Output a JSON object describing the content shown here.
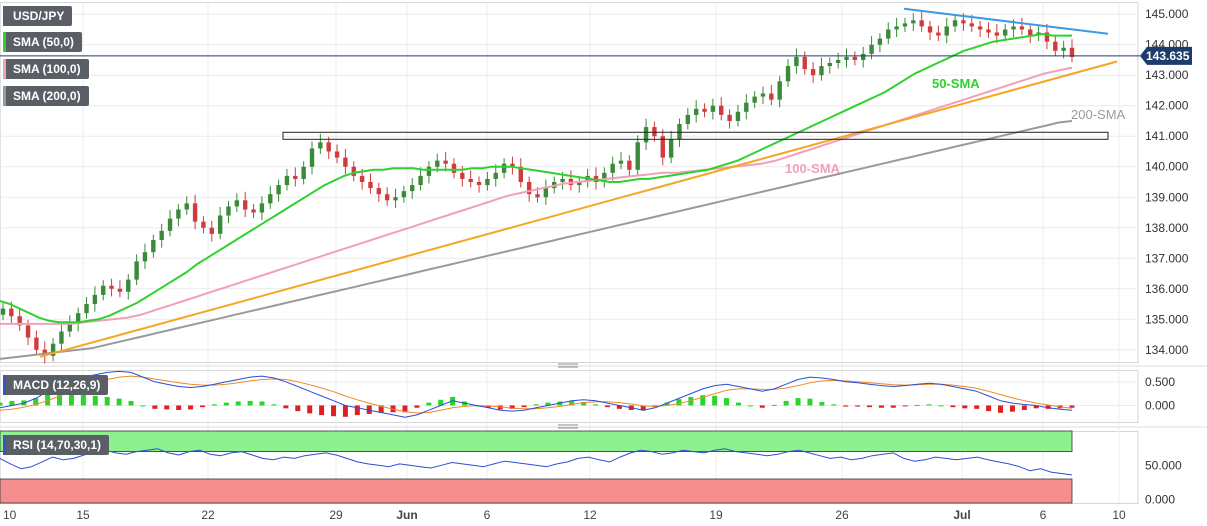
{
  "chart_data": {
    "type": "candlestick",
    "symbol": "USD/JPY",
    "indicators": [
      "SMA (50,0)",
      "SMA (100,0)",
      "SMA (200,0)"
    ],
    "price_axis": {
      "ylim": [
        133.6,
        145.4
      ],
      "ticks": [
        "134.000",
        "135.000",
        "136.000",
        "137.000",
        "138.000",
        "139.000",
        "140.000",
        "141.000",
        "142.000",
        "143.000",
        "144.000",
        "145.000"
      ]
    },
    "last_price": "143.635",
    "x_axis": {
      "labels": [
        "10",
        "15",
        "22",
        "29",
        "Jun",
        "6",
        "12",
        "19",
        "26",
        "Jul",
        "6",
        "10"
      ]
    },
    "annotations": {
      "sma50": "50-SMA",
      "sma100": "100-SMA",
      "sma200": "200-SMA"
    },
    "colors": {
      "up": "#3a8a3a",
      "down": "#d13b3b",
      "sma50": "#2fd12f",
      "sma100": "#f0a0b8",
      "sma200": "#9a9a9a",
      "trend": "#f5a623",
      "resist": "#3b9ae0"
    },
    "macd": {
      "label": "MACD (12,26,9)",
      "ticks": [
        "0.500",
        "0.000"
      ],
      "range": [
        -0.35,
        0.75
      ]
    },
    "rsi": {
      "label": "RSI (14,70,30,1)",
      "ticks": [
        "50.000",
        "0.000"
      ],
      "overbought": 70,
      "oversold": 30,
      "range": [
        -5,
        100
      ]
    },
    "series": {
      "close": [
        135.35,
        135.1,
        134.8,
        134.4,
        134.0,
        133.8,
        134.2,
        134.6,
        134.85,
        135.2,
        135.5,
        135.8,
        136.1,
        136.0,
        135.9,
        136.3,
        136.9,
        137.2,
        137.6,
        137.9,
        138.3,
        138.6,
        138.8,
        138.2,
        138.0,
        137.8,
        138.4,
        138.7,
        138.9,
        138.6,
        138.5,
        138.8,
        139.1,
        139.4,
        139.7,
        139.6,
        140.0,
        140.6,
        140.8,
        140.5,
        140.3,
        140.0,
        139.7,
        139.5,
        139.3,
        139.1,
        138.9,
        139.0,
        139.2,
        139.4,
        139.7,
        140.0,
        140.2,
        140.1,
        139.8,
        139.6,
        139.5,
        139.4,
        139.6,
        139.8,
        140.1,
        140.0,
        139.5,
        139.1,
        139.0,
        139.3,
        139.5,
        139.6,
        139.4,
        139.5,
        139.7,
        139.5,
        139.8,
        140.1,
        140.2,
        139.9,
        140.8,
        141.3,
        141.0,
        140.3,
        140.9,
        141.4,
        141.7,
        141.9,
        141.8,
        142.0,
        141.7,
        141.5,
        141.8,
        142.1,
        142.3,
        142.4,
        142.2,
        142.8,
        143.3,
        143.6,
        143.2,
        143.0,
        143.3,
        143.4,
        143.5,
        143.6,
        143.5,
        143.7,
        144.0,
        144.2,
        144.5,
        144.6,
        144.7,
        144.8,
        144.6,
        144.4,
        144.3,
        144.6,
        144.8,
        144.7,
        144.6,
        144.5,
        144.4,
        144.3,
        144.5,
        144.6,
        144.5,
        144.3,
        144.4,
        144.1,
        143.8,
        143.9,
        143.6
      ],
      "sma50": [
        135.6,
        135.5,
        135.35,
        135.2,
        135.05,
        134.95,
        134.9,
        134.9,
        134.9,
        134.95,
        135.0,
        135.1,
        135.25,
        135.4,
        135.55,
        135.75,
        135.95,
        136.15,
        136.35,
        136.55,
        136.8,
        137.0,
        137.2,
        137.4,
        137.6,
        137.8,
        138.0,
        138.2,
        138.4,
        138.6,
        138.8,
        139.0,
        139.2,
        139.4,
        139.55,
        139.7,
        139.8,
        139.85,
        139.9,
        139.9,
        139.95,
        139.95,
        139.95,
        139.9,
        139.9,
        139.9,
        139.9,
        139.9,
        139.95,
        139.95,
        140.0,
        140.0,
        140.0,
        139.95,
        139.9,
        139.85,
        139.8,
        139.75,
        139.7,
        139.65,
        139.6,
        139.55,
        139.5,
        139.5,
        139.55,
        139.6,
        139.6,
        139.65,
        139.7,
        139.75,
        139.8,
        139.85,
        139.9,
        140.0,
        140.1,
        140.2,
        140.35,
        140.5,
        140.65,
        140.8,
        140.95,
        141.1,
        141.25,
        141.4,
        141.55,
        141.7,
        141.85,
        142.0,
        142.15,
        142.3,
        142.45,
        142.65,
        142.85,
        143.05,
        143.2,
        143.35,
        143.5,
        143.65,
        143.8,
        143.9,
        144.0,
        144.1,
        144.15,
        144.2,
        144.25,
        144.3,
        144.35,
        144.3,
        144.3,
        144.3
      ],
      "sma100": [
        134.85,
        134.85,
        134.85,
        134.85,
        134.85,
        134.85,
        134.9,
        134.95,
        135.0,
        135.05,
        135.15,
        135.3,
        135.45,
        135.6,
        135.75,
        135.9,
        136.05,
        136.2,
        136.35,
        136.5,
        136.65,
        136.8,
        136.95,
        137.1,
        137.25,
        137.4,
        137.55,
        137.7,
        137.85,
        138.0,
        138.15,
        138.3,
        138.45,
        138.6,
        138.75,
        138.9,
        139.05,
        139.15,
        139.25,
        139.35,
        139.45,
        139.5,
        139.55,
        139.6,
        139.65,
        139.7,
        139.75,
        139.8,
        139.8,
        139.85,
        139.9,
        139.95,
        140.0,
        140.05,
        140.1,
        140.2,
        140.35,
        140.5,
        140.65,
        140.8,
        140.95,
        141.1,
        141.25,
        141.4,
        141.55,
        141.7,
        141.85,
        142.0,
        142.15,
        142.3,
        142.45,
        142.6,
        142.75,
        142.9,
        143.05,
        143.15,
        143.25
      ],
      "sma200": [
        133.7,
        133.75,
        133.8,
        133.85,
        133.9,
        133.95,
        134.0,
        134.05,
        134.15,
        134.25,
        134.35,
        134.45,
        134.55,
        134.65,
        134.75,
        134.85,
        134.95,
        135.05,
        135.15,
        135.25,
        135.35,
        135.45,
        135.55,
        135.65,
        135.75,
        135.85,
        135.95,
        136.05,
        136.15,
        136.25,
        136.35,
        136.45,
        136.55,
        136.65,
        136.75,
        136.85,
        136.95,
        137.05,
        137.15,
        137.25,
        137.35,
        137.45,
        137.55,
        137.65,
        137.75,
        137.85,
        137.95,
        138.05,
        138.15,
        138.25,
        138.35,
        138.45,
        138.55,
        138.65,
        138.75,
        138.85,
        138.95,
        139.05,
        139.15,
        139.25,
        139.35,
        139.45,
        139.55,
        139.65,
        139.75,
        139.85,
        139.95,
        140.05,
        140.15,
        140.25,
        140.35,
        140.45,
        140.55,
        140.65,
        140.75,
        140.85,
        140.95,
        141.05,
        141.15,
        141.25,
        141.35,
        141.45,
        141.5
      ],
      "macd_line": [
        -0.05,
        0.0,
        0.05,
        0.15,
        0.3,
        0.45,
        0.55,
        0.6,
        0.65,
        0.7,
        0.72,
        0.7,
        0.6,
        0.5,
        0.45,
        0.4,
        0.38,
        0.4,
        0.45,
        0.5,
        0.55,
        0.6,
        0.62,
        0.58,
        0.5,
        0.4,
        0.3,
        0.2,
        0.1,
        0.0,
        -0.05,
        -0.1,
        -0.15,
        -0.2,
        -0.25,
        -0.2,
        -0.1,
        0.0,
        0.1,
        0.05,
        0.0,
        -0.05,
        -0.1,
        -0.12,
        -0.1,
        -0.05,
        0.0,
        0.05,
        0.1,
        0.12,
        0.1,
        0.05,
        0.0,
        -0.05,
        -0.1,
        -0.05,
        0.05,
        0.15,
        0.25,
        0.35,
        0.42,
        0.45,
        0.4,
        0.35,
        0.3,
        0.35,
        0.45,
        0.55,
        0.6,
        0.58,
        0.55,
        0.5,
        0.48,
        0.45,
        0.42,
        0.4,
        0.42,
        0.45,
        0.47,
        0.45,
        0.4,
        0.35,
        0.3,
        0.2,
        0.1,
        0.05,
        0.02,
        0.0,
        -0.05,
        -0.08,
        -0.1
      ],
      "macd_signal": [
        -0.1,
        -0.08,
        -0.04,
        0.02,
        0.1,
        0.2,
        0.3,
        0.4,
        0.48,
        0.55,
        0.6,
        0.62,
        0.6,
        0.56,
        0.52,
        0.48,
        0.45,
        0.43,
        0.43,
        0.45,
        0.48,
        0.52,
        0.55,
        0.56,
        0.55,
        0.5,
        0.44,
        0.37,
        0.29,
        0.2,
        0.12,
        0.05,
        -0.02,
        -0.08,
        -0.13,
        -0.16,
        -0.15,
        -0.1,
        -0.05,
        -0.02,
        0.0,
        -0.01,
        -0.03,
        -0.06,
        -0.07,
        -0.07,
        -0.05,
        -0.02,
        0.02,
        0.06,
        0.08,
        0.08,
        0.06,
        0.03,
        -0.01,
        -0.02,
        0.0,
        0.04,
        0.1,
        0.17,
        0.25,
        0.32,
        0.35,
        0.35,
        0.34,
        0.34,
        0.37,
        0.42,
        0.48,
        0.52,
        0.53,
        0.52,
        0.5,
        0.48,
        0.46,
        0.44,
        0.43,
        0.44,
        0.45,
        0.45,
        0.43,
        0.4,
        0.36,
        0.3,
        0.23,
        0.16,
        0.1,
        0.05,
        0.01,
        -0.03,
        -0.06
      ],
      "rsi": [
        60,
        52,
        45,
        48,
        55,
        62,
        58,
        60,
        65,
        70,
        72,
        68,
        66,
        70,
        72,
        74,
        68,
        65,
        70,
        72,
        66,
        64,
        68,
        70,
        65,
        60,
        58,
        62,
        60,
        64,
        66,
        68,
        65,
        60,
        55,
        52,
        50,
        48,
        52,
        50,
        48,
        46,
        50,
        54,
        52,
        50,
        48,
        52,
        56,
        54,
        52,
        50,
        48,
        52,
        55,
        60,
        62,
        58,
        55,
        62,
        68,
        72,
        70,
        66,
        68,
        72,
        70,
        68,
        72,
        74,
        70,
        68,
        66,
        64,
        66,
        70,
        72,
        68,
        64,
        60,
        62,
        58,
        60,
        64,
        66,
        68,
        60,
        56,
        58,
        62,
        60,
        58,
        60,
        62,
        58,
        55,
        52,
        48,
        42,
        45,
        40,
        38,
        36
      ]
    }
  }
}
